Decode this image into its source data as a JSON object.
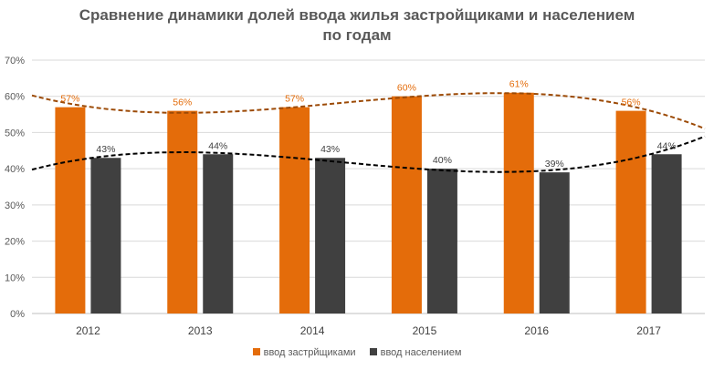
{
  "chart_data": {
    "type": "bar",
    "title": "Сравнение динамики долей ввода жилья застройщиками и населением",
    "title_line2": "по годам",
    "categories": [
      "2012",
      "2013",
      "2014",
      "2015",
      "2016",
      "2017"
    ],
    "y_ticks": [
      "0%",
      "10%",
      "20%",
      "30%",
      "40%",
      "50%",
      "60%",
      "70%"
    ],
    "ylim": [
      0,
      70
    ],
    "grid": true,
    "legend_position": "bottom",
    "series": [
      {
        "name": "ввод застрйщиками",
        "values": [
          57,
          56,
          57,
          60,
          61,
          56
        ],
        "labels": [
          "57%",
          "56%",
          "57%",
          "60%",
          "61%",
          "56%"
        ],
        "color": "#e46c0a",
        "trendline_color": "#9c4a06"
      },
      {
        "name": "ввод населением",
        "values": [
          43,
          44,
          43,
          40,
          39,
          44
        ],
        "labels": [
          "43%",
          "44%",
          "43%",
          "40%",
          "39%",
          "44%"
        ],
        "color": "#404040",
        "trendline_color": "#000000"
      }
    ]
  }
}
